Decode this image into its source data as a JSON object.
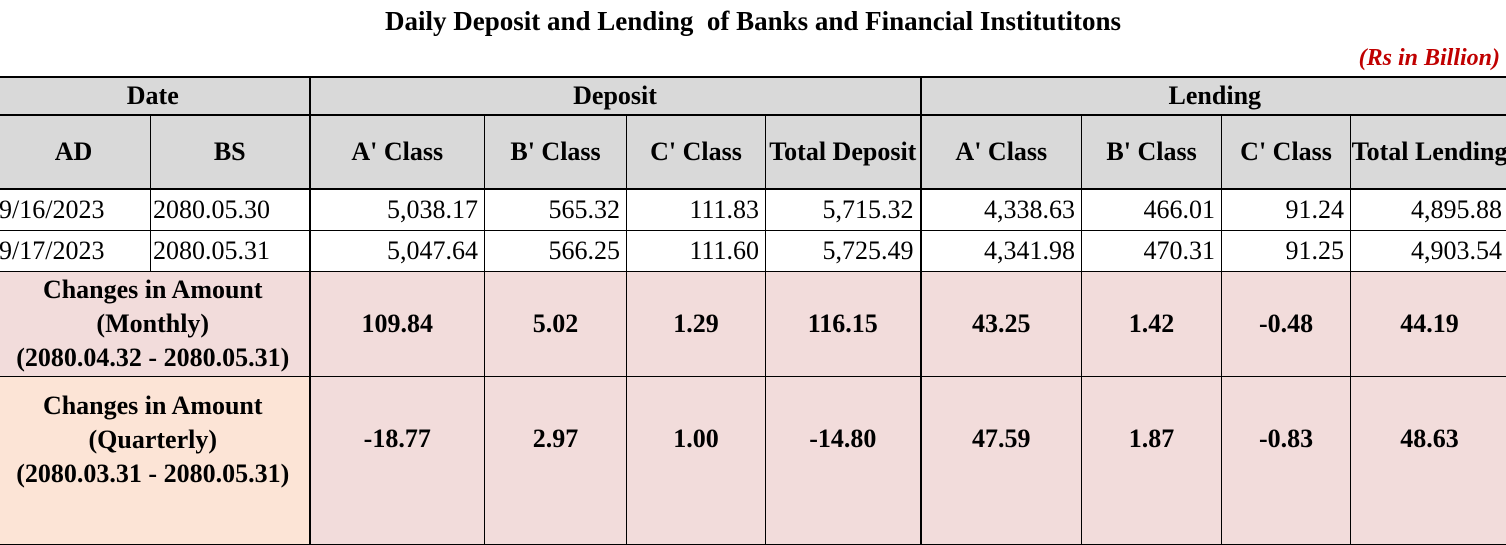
{
  "title": "Daily Deposit and Lending  of Banks and Financial Institutitons",
  "unit": "(Rs in Billion)",
  "headers": {
    "date": "Date",
    "deposit": "Deposit",
    "lending": "Lending",
    "ad": "AD",
    "bs": "BS",
    "dep_a": "A' Class",
    "dep_b": "B' Class",
    "dep_c": "C' Class",
    "dep_total": "Total Deposit",
    "len_a": "A' Class",
    "len_b": "B' Class",
    "len_c": "C' Class",
    "len_total": "Total Lending"
  },
  "rows": [
    {
      "ad": "9/16/2023",
      "bs": "2080.05.30",
      "dep_a": "5,038.17",
      "dep_b": "565.32",
      "dep_c": "111.83",
      "dep_total": "5,715.32",
      "len_a": "4,338.63",
      "len_b": "466.01",
      "len_c": "91.24",
      "len_total": "4,895.88"
    },
    {
      "ad": "9/17/2023",
      "bs": "2080.05.31",
      "dep_a": "5,047.64",
      "dep_b": "566.25",
      "dep_c": "111.60",
      "dep_total": "5,725.49",
      "len_a": "4,341.98",
      "len_b": "470.31",
      "len_c": "91.25",
      "len_total": "4,903.54"
    }
  ],
  "changes": [
    {
      "label1": "Changes in Amount",
      "label2": "(Monthly)",
      "label3": "(2080.04.32 - 2080.05.31)",
      "dep_a": "109.84",
      "dep_b": "5.02",
      "dep_c": "1.29",
      "dep_total": "116.15",
      "len_a": "43.25",
      "len_b": "1.42",
      "len_c": "-0.48",
      "len_total": "44.19"
    },
    {
      "label1": "Changes in Amount",
      "label2": "(Quarterly)",
      "label3": "(2080.03.31 - 2080.05.31)",
      "dep_a": "-18.77",
      "dep_b": "2.97",
      "dep_c": "1.00",
      "dep_total": "-14.80",
      "len_a": "47.59",
      "len_b": "1.87",
      "len_c": "-0.83",
      "len_total": "48.63"
    }
  ]
}
